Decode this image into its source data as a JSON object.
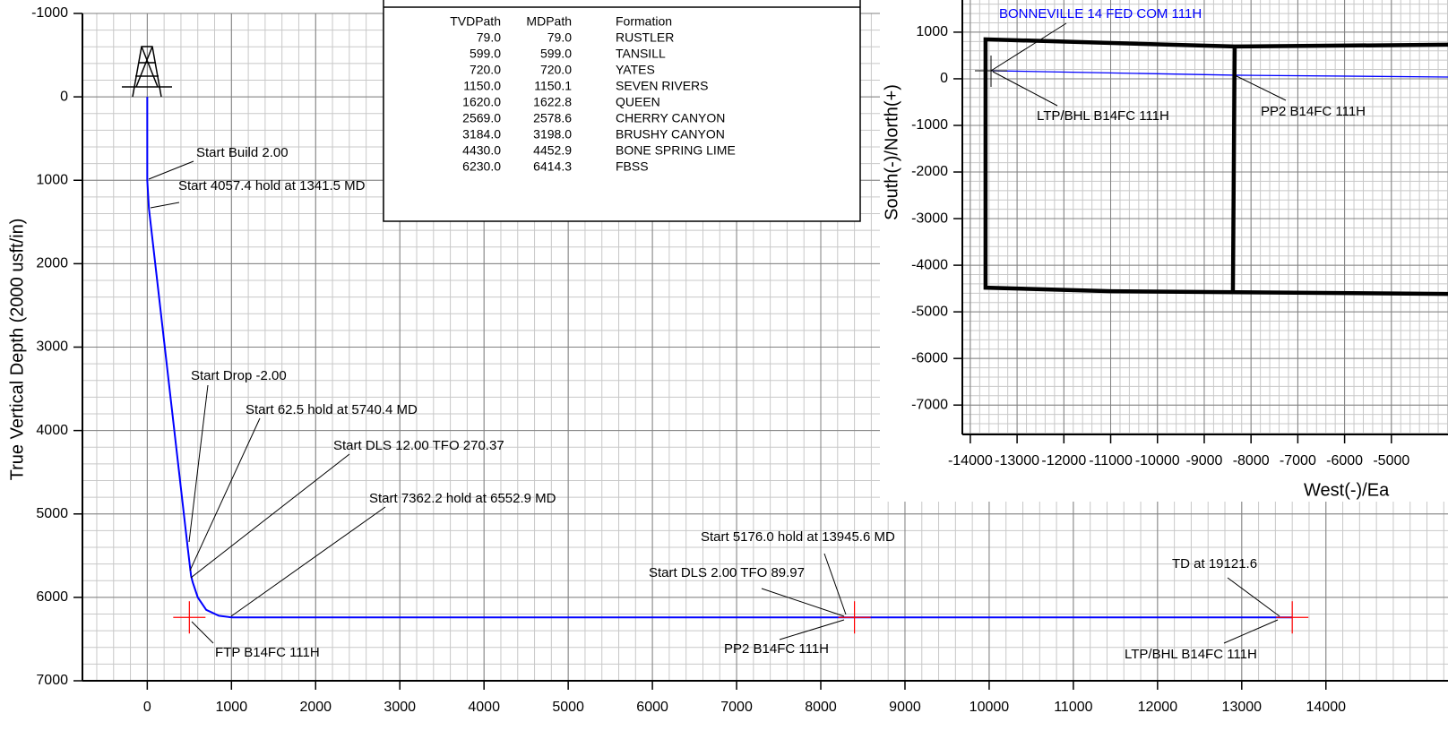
{
  "chart_data": [
    {
      "type": "line",
      "ylabel": "True Vertical Depth (2000 usft/in)",
      "xlim": [
        -770,
        15450
      ],
      "ylim": [
        7000,
        -1000
      ],
      "xticks": [
        0,
        1000,
        2000,
        3000,
        4000,
        5000,
        6000,
        7000,
        8000,
        9000,
        10000,
        11000,
        12000,
        13000,
        14000
      ],
      "yticks": [
        -1000,
        0,
        1000,
        2000,
        3000,
        4000,
        5000,
        6000,
        7000
      ],
      "minor_step": 200,
      "grid": true,
      "series": [
        {
          "color": "#0000ff",
          "x": [
            0,
            0,
            20,
            480,
            520,
            540,
            600,
            700,
            850,
            1000,
            8400,
            13600
          ],
          "values": [
            0,
            1000,
            1340,
            5400,
            5740,
            5820,
            6000,
            6150,
            6220,
            6240,
            6240,
            6240
          ]
        }
      ],
      "target_color": "#ff0000",
      "targets": [
        {
          "name": "FTP  B14FC  111H",
          "x": 500,
          "y": 6240
        },
        {
          "name": "PP2  B14FC  111H",
          "x": 8400,
          "y": 6240
        },
        {
          "name": "LTP/BHL  B14FC  111H",
          "x": 13600,
          "y": 6240
        }
      ],
      "annotations": [
        "Start Build 2.00",
        "Start 4057.4 hold at 1341.5 MD",
        "Start Drop -2.00",
        "Start 62.5 hold at 5740.4 MD",
        "Start DLS 12.00 TFO 270.37",
        "Start 7362.2 hold at 6552.9 MD",
        "Start 5176.0 hold at 13945.6 MD",
        "Start DLS 2.00 TFO 89.97",
        "TD at 19121.6"
      ]
    },
    {
      "type": "line",
      "title": "BONNEVILLE 14 FED COM 111H",
      "title_color": "#0000ff",
      "xlabel": "West(-)/Ea",
      "ylabel": "South(-)/North(+)",
      "xlim": [
        -14170,
        -3790
      ],
      "ylim": [
        -7630,
        1690
      ],
      "xticks": [
        -14000,
        -13000,
        -12000,
        -11000,
        -10000,
        -9000,
        -8000,
        -7000,
        -6000,
        -5000
      ],
      "yticks": [
        1000,
        0,
        -1000,
        -2000,
        -3000,
        -4000,
        -5000,
        -6000,
        -7000
      ],
      "minor_step": 200,
      "grid": true,
      "series": [
        {
          "color": "#0000ff",
          "x": [
            -13559,
            -8349,
            -3789
          ],
          "values": [
            173,
            77,
            38
          ]
        },
        {
          "color": "#000000",
          "x": [
            -3789,
            -8349,
            -13674,
            -13674,
            -10992,
            -3789
          ],
          "values": [
            731,
            692,
            846,
            -4481,
            -4558,
            -4615
          ]
        },
        {
          "color": "#000000",
          "x": [
            -8349,
            -8387
          ],
          "values": [
            692,
            -4538
          ]
        }
      ],
      "annotations": [
        "LTP/BHL  B14FC  111H",
        "PP2  B14FC  111H"
      ]
    }
  ],
  "formation_table": {
    "columns": [
      "TVDPath",
      "MDPath",
      "Formation"
    ],
    "rows": [
      [
        "79.0",
        "79.0",
        "RUSTLER"
      ],
      [
        "599.0",
        "599.0",
        "TANSILL"
      ],
      [
        "720.0",
        "720.0",
        "YATES"
      ],
      [
        "1150.0",
        "1150.1",
        "SEVEN RIVERS"
      ],
      [
        "1620.0",
        "1622.8",
        "QUEEN"
      ],
      [
        "2569.0",
        "2578.6",
        "CHERRY CANYON"
      ],
      [
        "3184.0",
        "3198.0",
        "BRUSHY CANYON"
      ],
      [
        "4430.0",
        "4452.9",
        "BONE SPRING LIME"
      ],
      [
        "6230.0",
        "6414.3",
        "FBSS"
      ]
    ]
  }
}
